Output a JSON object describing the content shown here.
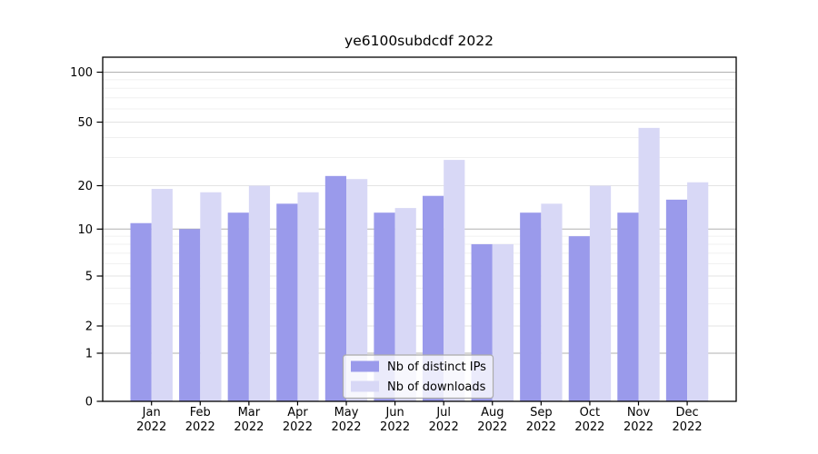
{
  "chart_data": {
    "type": "bar",
    "title": "ye6100subdcdf 2022",
    "categories": [
      "Jan",
      "Feb",
      "Mar",
      "Apr",
      "May",
      "Jun",
      "Jul",
      "Aug",
      "Sep",
      "Oct",
      "Nov",
      "Dec"
    ],
    "x_tick_year": "2022",
    "series": [
      {
        "name": "Nb of distinct IPs",
        "color": "#9a9aeb",
        "values": [
          11,
          10,
          13,
          15,
          23,
          13,
          17,
          8,
          13,
          9,
          13,
          16
        ]
      },
      {
        "name": "Nb of downloads",
        "color": "#d8d8f6",
        "values": [
          19,
          18,
          20,
          18,
          22,
          14,
          29,
          8,
          15,
          20,
          46,
          21
        ]
      }
    ],
    "y_ticks": [
      0,
      1,
      2,
      5,
      10,
      20,
      50,
      100
    ],
    "y_minor_ticks": [
      3,
      4,
      6,
      7,
      8,
      9,
      30,
      40,
      60,
      70,
      80,
      90
    ],
    "ylim": [
      0,
      120
    ],
    "y_scale": "log-like (0,1,2,5,10,20,50,100)",
    "grid": true,
    "legend_position": "lower center"
  },
  "colors": {
    "bar_ips": "#9a9aeb",
    "bar_downloads": "#d8d8f6",
    "grid_decade": "#b0b0b0",
    "grid_labeled": "#e3e3e3",
    "grid_minor": "#f0f0f0",
    "axis_spine": "#000000",
    "legend_border": "#aaaaaa"
  }
}
